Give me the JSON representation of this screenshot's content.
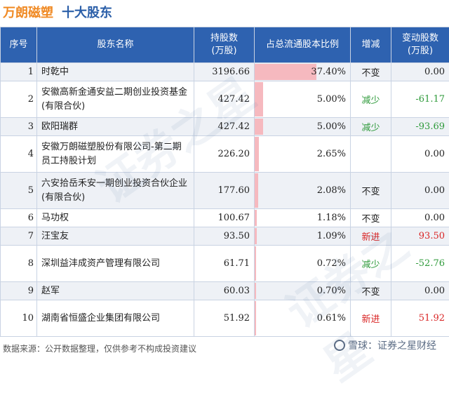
{
  "header": {
    "company": "万朗磁塑",
    "subtitle": "十大股东"
  },
  "columns": {
    "no": "序号",
    "name": "股东名称",
    "shares": "持股数\n(万股)",
    "ratio": "占总流通股本比例",
    "change": "增减",
    "delta": "变动股数\n(万股)"
  },
  "rows": [
    {
      "no": "1",
      "name": "时乾中",
      "shares": "3196.66",
      "ratio": "37.40%",
      "ratio_value": 37.4,
      "change": "不变",
      "change_type": "keep",
      "delta": "0.00"
    },
    {
      "no": "2",
      "name": "安徽高新金通安益二期创业投资基金(有限合伙)",
      "shares": "427.42",
      "ratio": "5.00%",
      "ratio_value": 5.0,
      "change": "减少",
      "change_type": "down",
      "delta": "-61.17"
    },
    {
      "no": "3",
      "name": "欧阳瑞群",
      "shares": "427.42",
      "ratio": "5.00%",
      "ratio_value": 5.0,
      "change": "减少",
      "change_type": "down",
      "delta": "-93.69"
    },
    {
      "no": "4",
      "name": "安徽万朗磁塑股份有限公司-第二期员工持股计划",
      "shares": "226.20",
      "ratio": "2.65%",
      "ratio_value": 2.65,
      "change": "",
      "change_type": "none",
      "delta": "0.00"
    },
    {
      "no": "5",
      "name": "六安拾岳禾安一期创业投资合伙企业(有限合伙)",
      "shares": "177.60",
      "ratio": "2.08%",
      "ratio_value": 2.08,
      "change": "不变",
      "change_type": "keep",
      "delta": "0.00"
    },
    {
      "no": "6",
      "name": "马功权",
      "shares": "100.67",
      "ratio": "1.18%",
      "ratio_value": 1.18,
      "change": "不变",
      "change_type": "keep",
      "delta": "0.00"
    },
    {
      "no": "7",
      "name": "汪宝友",
      "shares": "93.50",
      "ratio": "1.09%",
      "ratio_value": 1.09,
      "change": "新进",
      "change_type": "new",
      "delta": "93.50"
    },
    {
      "no": "8",
      "name": "深圳益沣成资产管理有限公司",
      "shares": "61.71",
      "ratio": "0.72%",
      "ratio_value": 0.72,
      "change": "减少",
      "change_type": "down",
      "delta": "-52.76"
    },
    {
      "no": "9",
      "name": "赵军",
      "shares": "60.03",
      "ratio": "0.70%",
      "ratio_value": 0.7,
      "change": "不变",
      "change_type": "keep",
      "delta": "0.00"
    },
    {
      "no": "10",
      "name": "湖南省恒盛企业集团有限公司",
      "shares": "51.92",
      "ratio": "0.61%",
      "ratio_value": 0.61,
      "change": "新进",
      "change_type": "new",
      "delta": "51.92"
    }
  ],
  "footer": {
    "source": "数据来源：公开数据整理，仅供参考不构成投资建议"
  },
  "logo": {
    "text": "雪球：证券之星财经"
  },
  "watermark": {
    "text": "证券之星"
  }
}
